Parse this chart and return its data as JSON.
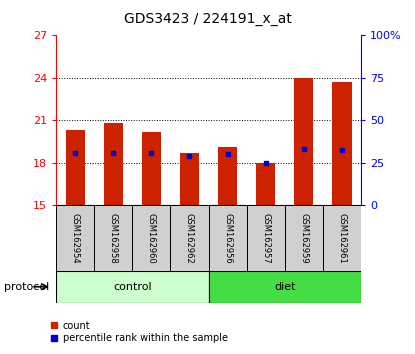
{
  "title": "GDS3423 / 224191_x_at",
  "samples": [
    "GSM162954",
    "GSM162958",
    "GSM162960",
    "GSM162962",
    "GSM162956",
    "GSM162957",
    "GSM162959",
    "GSM162961"
  ],
  "count_values": [
    20.3,
    20.8,
    20.2,
    18.7,
    19.1,
    18.0,
    24.0,
    23.7
  ],
  "percentile_values": [
    18.7,
    18.7,
    18.7,
    18.5,
    18.6,
    18.0,
    19.0,
    18.9
  ],
  "bar_bottom": 15.0,
  "ylim": [
    15,
    27
  ],
  "yticks_left": [
    15,
    18,
    21,
    24,
    27
  ],
  "yticks_right": [
    0,
    25,
    50,
    75,
    100
  ],
  "bar_color": "#cc2200",
  "percentile_color": "#0000cc",
  "control_label": "control",
  "diet_label": "diet",
  "protocol_label": "protocol",
  "legend_count": "count",
  "legend_percentile": "percentile rank within the sample",
  "control_color": "#ccffcc",
  "diet_color": "#44dd44",
  "bar_width": 0.5,
  "sample_bg_color": "#d0d0d0"
}
